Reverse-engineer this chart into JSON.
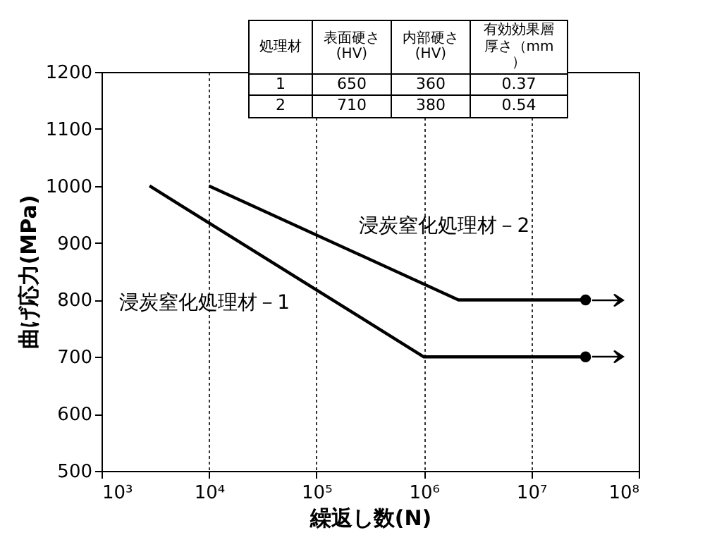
{
  "chart_data": {
    "type": "line",
    "ylabel": "曲げ応力(MPa)",
    "xlabel": "繰返し数(N)",
    "log": "x",
    "xlim": [
      1000,
      100000000
    ],
    "xticks": [
      {
        "value": 1000,
        "label": "10³"
      },
      {
        "value": 10000,
        "label": "10⁴"
      },
      {
        "value": 100000,
        "label": "10⁵"
      },
      {
        "value": 1000000,
        "label": "10⁶"
      },
      {
        "value": 10000000,
        "label": "10⁷"
      },
      {
        "value": 100000000,
        "label": "10⁸"
      }
    ],
    "ylim": [
      500,
      1200
    ],
    "yticks": [
      500,
      600,
      700,
      800,
      900,
      1000,
      1100,
      1200
    ],
    "grid": "x",
    "line_style": "solid",
    "series": [
      {
        "name": "浸炭窒化処理材－1",
        "color": "#000000",
        "x": [
          2800,
          1000000,
          32000000
        ],
        "values": [
          1000,
          700,
          700
        ]
      },
      {
        "name": "浸炭窒化処理材－2",
        "color": "#000000",
        "x": [
          10000,
          2100000,
          32000000
        ],
        "values": [
          1000,
          800,
          800
        ]
      },
      {
        "type": "scatter",
        "marker": "circle",
        "color": "#000000",
        "x": [
          32000000,
          32000000
        ],
        "values": [
          700,
          800
        ]
      }
    ],
    "annotations": [
      "処理材",
      "表面硬さ(HV)",
      "内部硬さ(HV)",
      "有効効果層厚さ（mm）",
      "1",
      "650",
      "360",
      "0.37",
      "2",
      "710",
      "380",
      "0.54"
    ]
  }
}
